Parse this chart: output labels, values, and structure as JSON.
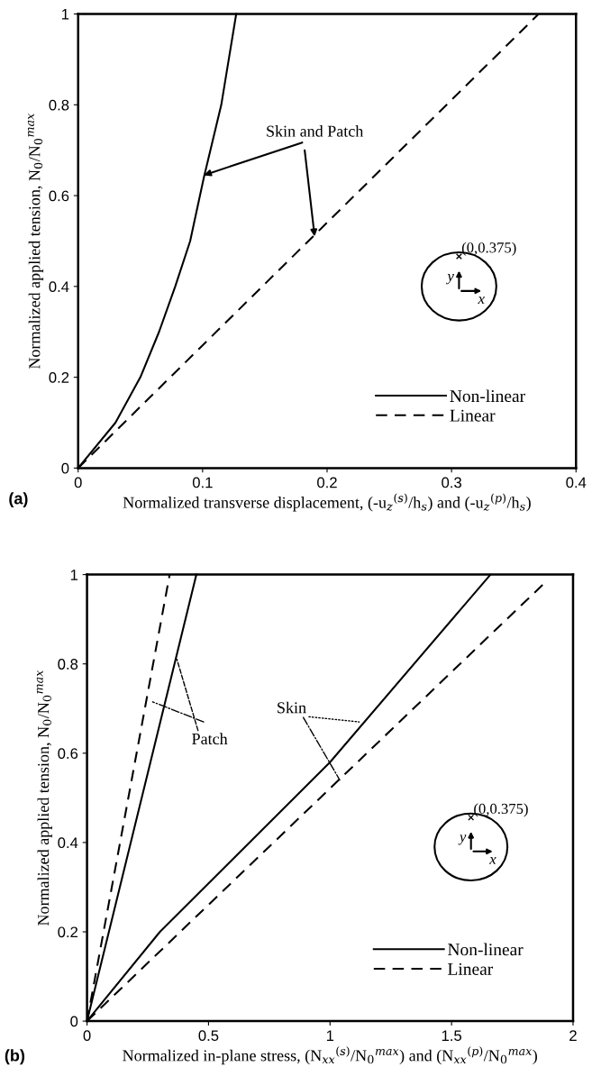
{
  "chart_data": [
    {
      "type": "line",
      "xlabel": "Normalized transverse displacement, (-u$_{z}$$^{(s)}$/h$_{s}$) and (-u$_{z}$$^{(p)}$/h$_{s}$)",
      "ylabel": "Normalized applied tension, N$_{0}$/N$_{0}$$^{max}$",
      "xlim": [
        0,
        0.4
      ],
      "ylim": [
        0,
        1
      ],
      "xticks": [
        0,
        0.1,
        0.2,
        0.3,
        0.4
      ],
      "yticks": [
        0,
        0.2,
        0.4,
        0.6,
        0.8,
        1
      ],
      "legend": "bottom right",
      "grid": false,
      "series": [
        {
          "name": "Non-linear",
          "color": "#000000",
          "line_style": "solid",
          "x": [
            0,
            0.03,
            0.05,
            0.065,
            0.078,
            0.09,
            0.101,
            0.115,
            0.127
          ],
          "values": [
            0,
            0.1,
            0.2,
            0.3,
            0.4,
            0.5,
            0.64,
            0.8,
            1
          ]
        },
        {
          "name": "Linear",
          "color": "#000000",
          "line_style": "dashed",
          "x": [
            0,
            0.37
          ],
          "values": [
            0,
            1
          ]
        }
      ],
      "annotations": [
        "(a)",
        {
          "text": "Skin and Patch",
          "x": 0.101,
          "y": 0.645
        },
        "(0,0.375)",
        "y",
        "x"
      ]
    },
    {
      "type": "line",
      "xlabel": "Normalized in-plane stress, (N$_{xx}$$^{(s)}$/N$_{0}$$^{max}$) and (N$_{xx}$$^{(p)}$/N$_{0}$$^{max}$)",
      "ylabel": "Normalized applied tension, N$_{0}$/N$_{0}$$^{max}$",
      "xlim": [
        0,
        2
      ],
      "ylim": [
        0,
        1
      ],
      "xticks": [
        0,
        0.5,
        1,
        1.5,
        2
      ],
      "yticks": [
        0,
        0.2,
        0.4,
        0.6,
        0.8,
        1
      ],
      "legend": "bottom right",
      "grid": false,
      "series": [
        {
          "name": "Non-linear",
          "color": "#000000",
          "line_style": "solid",
          "x": [
            0,
            0.3,
            1.0,
            1.66
          ],
          "values": [
            0,
            0.2,
            0.58,
            1
          ]
        },
        {
          "name": "Linear",
          "color": "#000000",
          "line_style": "dashed",
          "x": [
            0,
            1.89
          ],
          "values": [
            0,
            0.985
          ]
        },
        {
          "color": "#000000",
          "line_style": "solid",
          "x": [
            0,
            0.45
          ],
          "values": [
            0,
            1
          ]
        },
        {
          "color": "#000000",
          "line_style": "dashed",
          "x": [
            0,
            0.34
          ],
          "values": [
            0,
            1
          ]
        }
      ],
      "annotations": [
        "(b)",
        {
          "text": "Patch",
          "x": 0.37,
          "y": 0.81
        },
        {
          "text": "Skin",
          "x": 1.12,
          "y": 0.67
        },
        "(0,0.375)",
        "y",
        "x"
      ]
    }
  ]
}
